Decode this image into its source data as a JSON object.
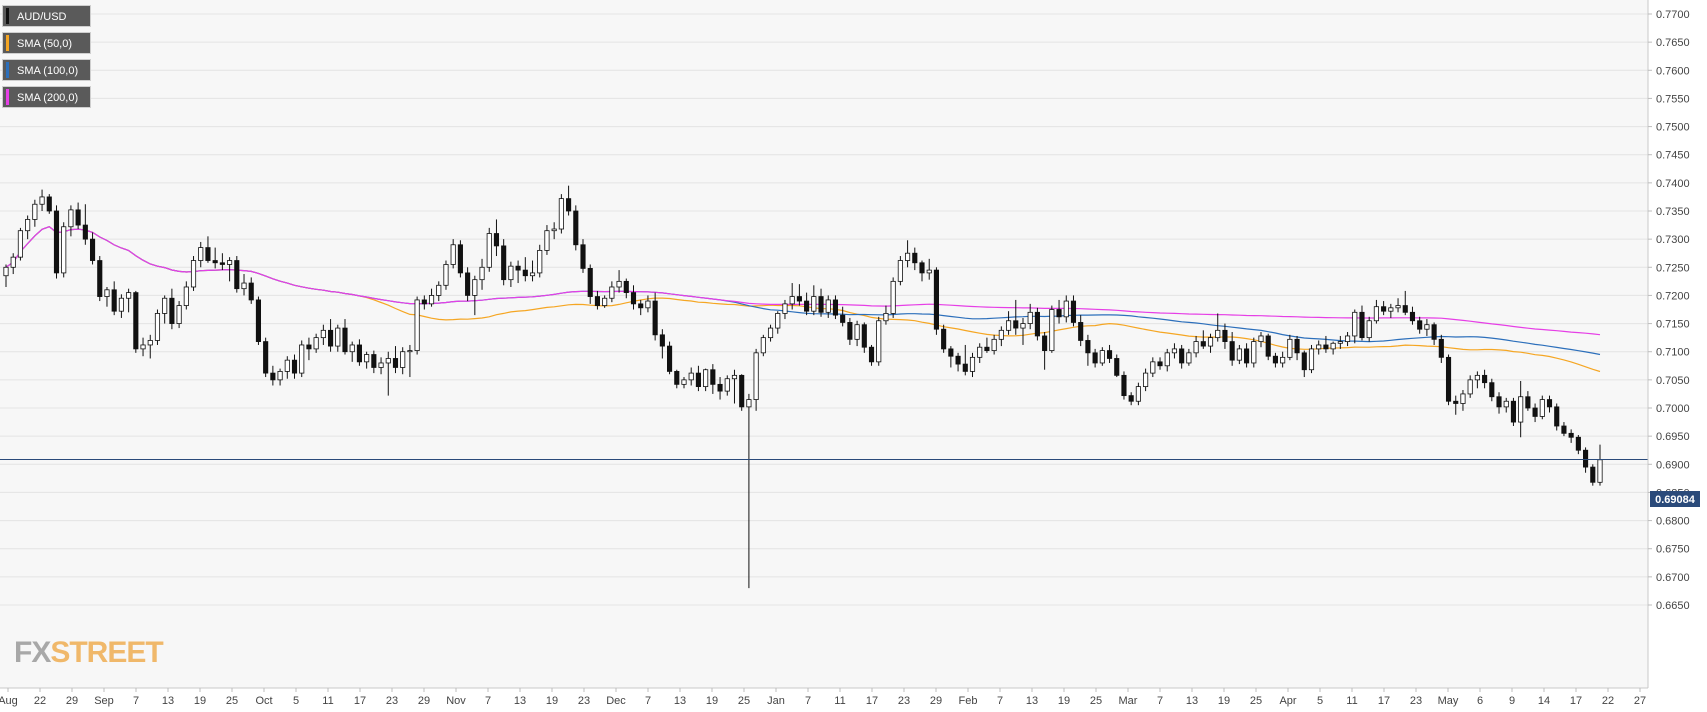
{
  "chart_data": {
    "type": "candlestick",
    "symbol": "AUD/USD",
    "y_axis": {
      "range": [
        0.6622,
        0.7715
      ],
      "ticks": [
        "0.7700",
        "0.7650",
        "0.7600",
        "0.7550",
        "0.7500",
        "0.7450",
        "0.7400",
        "0.7350",
        "0.7300",
        "0.7250",
        "0.7200",
        "0.7150",
        "0.7100",
        "0.7050",
        "0.7000",
        "0.6950",
        "0.6900",
        "0.6850",
        "0.6800",
        "0.6750",
        "0.6700",
        "0.6650"
      ]
    },
    "x_axis": {
      "ticks": [
        "Aug",
        "22",
        "29",
        "Sep",
        "7",
        "13",
        "19",
        "25",
        "Oct",
        "5",
        "11",
        "17",
        "23",
        "29",
        "Nov",
        "7",
        "13",
        "19",
        "23",
        "Dec",
        "7",
        "13",
        "19",
        "25",
        "Jan",
        "7",
        "11",
        "17",
        "23",
        "29",
        "Feb",
        "7",
        "13",
        "19",
        "25",
        "Mar",
        "7",
        "13",
        "19",
        "25",
        "Apr",
        "5",
        "11",
        "17",
        "23",
        "May",
        "6",
        "9",
        "14",
        "17",
        "22",
        "27"
      ]
    },
    "last_price": "0.69084",
    "candles": [
      [
        0.7235,
        0.7255,
        0.7215,
        0.725
      ],
      [
        0.725,
        0.7275,
        0.7238,
        0.7268
      ],
      [
        0.7268,
        0.732,
        0.7262,
        0.7315
      ],
      [
        0.7315,
        0.7342,
        0.73,
        0.7335
      ],
      [
        0.7335,
        0.737,
        0.7322,
        0.7362
      ],
      [
        0.7362,
        0.7388,
        0.735,
        0.7375
      ],
      [
        0.7375,
        0.738,
        0.7345,
        0.735
      ],
      [
        0.735,
        0.736,
        0.723,
        0.724
      ],
      [
        0.724,
        0.733,
        0.7232,
        0.7322
      ],
      [
        0.7322,
        0.736,
        0.7305,
        0.7352
      ],
      [
        0.7352,
        0.7365,
        0.7318,
        0.7325
      ],
      [
        0.7325,
        0.7362,
        0.729,
        0.73
      ],
      [
        0.73,
        0.7312,
        0.7255,
        0.7262
      ],
      [
        0.7262,
        0.727,
        0.719,
        0.7198
      ],
      [
        0.7198,
        0.7215,
        0.718,
        0.721
      ],
      [
        0.721,
        0.7225,
        0.7165,
        0.7172
      ],
      [
        0.7172,
        0.7202,
        0.716,
        0.7195
      ],
      [
        0.7195,
        0.7212,
        0.717,
        0.7205
      ],
      [
        0.7205,
        0.7208,
        0.7098,
        0.7105
      ],
      [
        0.7105,
        0.7125,
        0.7092,
        0.7112
      ],
      [
        0.7112,
        0.713,
        0.7088,
        0.712
      ],
      [
        0.712,
        0.7175,
        0.7112,
        0.7168
      ],
      [
        0.7168,
        0.72,
        0.715,
        0.7195
      ],
      [
        0.7195,
        0.7212,
        0.714,
        0.715
      ],
      [
        0.715,
        0.719,
        0.7142,
        0.7182
      ],
      [
        0.7182,
        0.7225,
        0.7175,
        0.7215
      ],
      [
        0.7215,
        0.727,
        0.7208,
        0.7262
      ],
      [
        0.7262,
        0.7295,
        0.725,
        0.7285
      ],
      [
        0.7285,
        0.7305,
        0.7258,
        0.7262
      ],
      [
        0.7262,
        0.7285,
        0.7248,
        0.7258
      ],
      [
        0.7258,
        0.7275,
        0.7245,
        0.7255
      ],
      [
        0.7255,
        0.7268,
        0.7225,
        0.7262
      ],
      [
        0.7262,
        0.727,
        0.7205,
        0.7212
      ],
      [
        0.7212,
        0.7238,
        0.72,
        0.7222
      ],
      [
        0.7222,
        0.7232,
        0.7185,
        0.7192
      ],
      [
        0.7192,
        0.7198,
        0.7112,
        0.7118
      ],
      [
        0.7118,
        0.7125,
        0.7055,
        0.7062
      ],
      [
        0.7062,
        0.7075,
        0.704,
        0.705
      ],
      [
        0.705,
        0.707,
        0.704,
        0.7065
      ],
      [
        0.7065,
        0.7092,
        0.7052,
        0.7085
      ],
      [
        0.7085,
        0.7095,
        0.7052,
        0.7062
      ],
      [
        0.7062,
        0.712,
        0.7055,
        0.7112
      ],
      [
        0.7112,
        0.7125,
        0.7085,
        0.7105
      ],
      [
        0.7105,
        0.7132,
        0.7098,
        0.7125
      ],
      [
        0.7125,
        0.7148,
        0.7112,
        0.7138
      ],
      [
        0.7138,
        0.7158,
        0.71,
        0.711
      ],
      [
        0.711,
        0.7148,
        0.71,
        0.7142
      ],
      [
        0.7142,
        0.7158,
        0.7095,
        0.71
      ],
      [
        0.71,
        0.7118,
        0.7082,
        0.7112
      ],
      [
        0.7112,
        0.7122,
        0.7075,
        0.7082
      ],
      [
        0.7082,
        0.71,
        0.707,
        0.7095
      ],
      [
        0.7095,
        0.7102,
        0.7062,
        0.7072
      ],
      [
        0.7072,
        0.709,
        0.706,
        0.708
      ],
      [
        0.708,
        0.71,
        0.7022,
        0.7088
      ],
      [
        0.7088,
        0.711,
        0.7062,
        0.7072
      ],
      [
        0.7072,
        0.7108,
        0.706,
        0.71
      ],
      [
        0.71,
        0.7112,
        0.7055,
        0.7102
      ],
      [
        0.7102,
        0.7198,
        0.7095,
        0.7192
      ],
      [
        0.7192,
        0.72,
        0.7175,
        0.7185
      ],
      [
        0.7185,
        0.7212,
        0.718,
        0.72
      ],
      [
        0.72,
        0.7225,
        0.719,
        0.7218
      ],
      [
        0.7218,
        0.7262,
        0.721,
        0.7255
      ],
      [
        0.7255,
        0.73,
        0.7248,
        0.729
      ],
      [
        0.729,
        0.7298,
        0.7232,
        0.724
      ],
      [
        0.724,
        0.725,
        0.719,
        0.72
      ],
      [
        0.72,
        0.7235,
        0.7165,
        0.7228
      ],
      [
        0.7228,
        0.7265,
        0.721,
        0.725
      ],
      [
        0.725,
        0.732,
        0.7242,
        0.731
      ],
      [
        0.731,
        0.7335,
        0.727,
        0.7288
      ],
      [
        0.7288,
        0.73,
        0.7218,
        0.7228
      ],
      [
        0.7228,
        0.726,
        0.7215,
        0.7252
      ],
      [
        0.7252,
        0.7262,
        0.7222,
        0.7245
      ],
      [
        0.7245,
        0.7268,
        0.7225,
        0.7235
      ],
      [
        0.7235,
        0.7262,
        0.7225,
        0.724
      ],
      [
        0.724,
        0.729,
        0.7232,
        0.728
      ],
      [
        0.728,
        0.7325,
        0.7272,
        0.7315
      ],
      [
        0.7315,
        0.733,
        0.73,
        0.7318
      ],
      [
        0.7318,
        0.738,
        0.731,
        0.7372
      ],
      [
        0.7372,
        0.7395,
        0.7342,
        0.735
      ],
      [
        0.735,
        0.736,
        0.728,
        0.729
      ],
      [
        0.729,
        0.73,
        0.724,
        0.7248
      ],
      [
        0.7248,
        0.7255,
        0.7185,
        0.7198
      ],
      [
        0.7198,
        0.7208,
        0.7175,
        0.7182
      ],
      [
        0.7182,
        0.72,
        0.7178,
        0.7195
      ],
      [
        0.7195,
        0.7225,
        0.7188,
        0.7215
      ],
      [
        0.7215,
        0.7245,
        0.7205,
        0.7225
      ],
      [
        0.7225,
        0.723,
        0.7195,
        0.7205
      ],
      [
        0.7205,
        0.7218,
        0.7175,
        0.7185
      ],
      [
        0.7185,
        0.7192,
        0.7165,
        0.7178
      ],
      [
        0.7178,
        0.72,
        0.717,
        0.719
      ],
      [
        0.719,
        0.7205,
        0.712,
        0.713
      ],
      [
        0.713,
        0.714,
        0.7088,
        0.711
      ],
      [
        0.711,
        0.7118,
        0.706,
        0.7065
      ],
      [
        0.7065,
        0.7068,
        0.7035,
        0.7042
      ],
      [
        0.7042,
        0.7055,
        0.7035,
        0.705
      ],
      [
        0.705,
        0.7072,
        0.704,
        0.7062
      ],
      [
        0.7062,
        0.7075,
        0.703,
        0.7038
      ],
      [
        0.7038,
        0.707,
        0.703,
        0.7068
      ],
      [
        0.7068,
        0.7078,
        0.7025,
        0.7042
      ],
      [
        0.7042,
        0.7055,
        0.7015,
        0.703
      ],
      [
        0.703,
        0.7058,
        0.7022,
        0.7052
      ],
      [
        0.7052,
        0.7068,
        0.7008,
        0.7058
      ],
      [
        0.7058,
        0.706,
        0.6995,
        0.7002
      ],
      [
        0.7002,
        0.7025,
        0.668,
        0.7015
      ],
      [
        0.7015,
        0.7105,
        0.6995,
        0.7098
      ],
      [
        0.7098,
        0.713,
        0.7092,
        0.7125
      ],
      [
        0.7125,
        0.7148,
        0.7118,
        0.7142
      ],
      [
        0.7142,
        0.7172,
        0.7132,
        0.7168
      ],
      [
        0.7168,
        0.7192,
        0.7158,
        0.7185
      ],
      [
        0.7185,
        0.7222,
        0.7175,
        0.7198
      ],
      [
        0.7198,
        0.722,
        0.7182,
        0.719
      ],
      [
        0.719,
        0.7205,
        0.7165,
        0.7172
      ],
      [
        0.7172,
        0.7218,
        0.7165,
        0.7198
      ],
      [
        0.7198,
        0.7212,
        0.7162,
        0.717
      ],
      [
        0.717,
        0.72,
        0.716,
        0.7192
      ],
      [
        0.7192,
        0.72,
        0.7158,
        0.7165
      ],
      [
        0.7165,
        0.718,
        0.7145,
        0.7152
      ],
      [
        0.7152,
        0.716,
        0.7112,
        0.7122
      ],
      [
        0.7122,
        0.7155,
        0.711,
        0.7148
      ],
      [
        0.7148,
        0.7152,
        0.7098,
        0.7108
      ],
      [
        0.7108,
        0.7112,
        0.7075,
        0.7082
      ],
      [
        0.7082,
        0.7162,
        0.7075,
        0.7155
      ],
      [
        0.7155,
        0.7182,
        0.7148,
        0.7168
      ],
      [
        0.7168,
        0.7232,
        0.716,
        0.7225
      ],
      [
        0.7225,
        0.727,
        0.7218,
        0.7262
      ],
      [
        0.7262,
        0.7298,
        0.725,
        0.7275
      ],
      [
        0.7275,
        0.7285,
        0.7245,
        0.7258
      ],
      [
        0.7258,
        0.7262,
        0.7225,
        0.724
      ],
      [
        0.724,
        0.7265,
        0.7228,
        0.7245
      ],
      [
        0.7245,
        0.725,
        0.713,
        0.714
      ],
      [
        0.714,
        0.7148,
        0.7098,
        0.7105
      ],
      [
        0.7105,
        0.711,
        0.7072,
        0.7092
      ],
      [
        0.7092,
        0.7098,
        0.7065,
        0.7078
      ],
      [
        0.7078,
        0.7112,
        0.7058,
        0.7065
      ],
      [
        0.7065,
        0.7098,
        0.7055,
        0.709
      ],
      [
        0.709,
        0.7115,
        0.708,
        0.7108
      ],
      [
        0.7108,
        0.7125,
        0.7098,
        0.7102
      ],
      [
        0.7102,
        0.713,
        0.7095,
        0.7122
      ],
      [
        0.7122,
        0.7145,
        0.711,
        0.7138
      ],
      [
        0.7138,
        0.7172,
        0.713,
        0.7155
      ],
      [
        0.7155,
        0.7192,
        0.713,
        0.7142
      ],
      [
        0.7142,
        0.716,
        0.7112,
        0.715
      ],
      [
        0.715,
        0.7185,
        0.714,
        0.717
      ],
      [
        0.717,
        0.7178,
        0.712,
        0.7128
      ],
      [
        0.7128,
        0.7135,
        0.7068,
        0.7102
      ],
      [
        0.7102,
        0.7182,
        0.7098,
        0.7175
      ],
      [
        0.7175,
        0.7192,
        0.715,
        0.7162
      ],
      [
        0.7162,
        0.72,
        0.7152,
        0.719
      ],
      [
        0.719,
        0.72,
        0.7145,
        0.7152
      ],
      [
        0.7152,
        0.7165,
        0.711,
        0.712
      ],
      [
        0.712,
        0.713,
        0.7075,
        0.7098
      ],
      [
        0.7098,
        0.7105,
        0.7072,
        0.708
      ],
      [
        0.708,
        0.7108,
        0.7075,
        0.7102
      ],
      [
        0.7102,
        0.7112,
        0.708,
        0.7088
      ],
      [
        0.7088,
        0.7095,
        0.7055,
        0.7058
      ],
      [
        0.7058,
        0.7065,
        0.7015,
        0.7022
      ],
      [
        0.7022,
        0.7028,
        0.7005,
        0.7012
      ],
      [
        0.7012,
        0.7045,
        0.7005,
        0.7038
      ],
      [
        0.7038,
        0.707,
        0.703,
        0.7062
      ],
      [
        0.7062,
        0.709,
        0.7055,
        0.7082
      ],
      [
        0.7082,
        0.709,
        0.7068,
        0.7075
      ],
      [
        0.7075,
        0.7105,
        0.7065,
        0.7098
      ],
      [
        0.7098,
        0.7115,
        0.7088,
        0.7105
      ],
      [
        0.7105,
        0.7112,
        0.707,
        0.708
      ],
      [
        0.708,
        0.7105,
        0.7075,
        0.7098
      ],
      [
        0.7098,
        0.7128,
        0.709,
        0.7118
      ],
      [
        0.7118,
        0.7138,
        0.7105,
        0.711
      ],
      [
        0.711,
        0.7132,
        0.7098,
        0.7125
      ],
      [
        0.7125,
        0.7168,
        0.7118,
        0.7138
      ],
      [
        0.7138,
        0.715,
        0.7105,
        0.7118
      ],
      [
        0.7118,
        0.7135,
        0.7075,
        0.7085
      ],
      [
        0.7085,
        0.7112,
        0.7078,
        0.7105
      ],
      [
        0.7105,
        0.7115,
        0.7072,
        0.708
      ],
      [
        0.708,
        0.7125,
        0.7072,
        0.7118
      ],
      [
        0.7118,
        0.7135,
        0.7108,
        0.7128
      ],
      [
        0.7128,
        0.7132,
        0.7085,
        0.7092
      ],
      [
        0.7092,
        0.7098,
        0.7072,
        0.708
      ],
      [
        0.708,
        0.71,
        0.7072,
        0.709
      ],
      [
        0.709,
        0.713,
        0.7085,
        0.7122
      ],
      [
        0.7122,
        0.7128,
        0.7085,
        0.7098
      ],
      [
        0.7098,
        0.7102,
        0.7055,
        0.7068
      ],
      [
        0.7068,
        0.7112,
        0.7062,
        0.7105
      ],
      [
        0.7105,
        0.712,
        0.7095,
        0.7112
      ],
      [
        0.7112,
        0.7128,
        0.7098,
        0.7105
      ],
      [
        0.7105,
        0.7118,
        0.7095,
        0.7115
      ],
      [
        0.7115,
        0.7128,
        0.7105,
        0.7118
      ],
      [
        0.7118,
        0.7135,
        0.711,
        0.7128
      ],
      [
        0.7128,
        0.7175,
        0.7115,
        0.717
      ],
      [
        0.717,
        0.7182,
        0.712,
        0.7125
      ],
      [
        0.7125,
        0.7162,
        0.7118,
        0.7155
      ],
      [
        0.7155,
        0.7192,
        0.715,
        0.718
      ],
      [
        0.718,
        0.719,
        0.7165,
        0.7172
      ],
      [
        0.7172,
        0.7185,
        0.716,
        0.7178
      ],
      [
        0.7178,
        0.7195,
        0.717,
        0.7182
      ],
      [
        0.7182,
        0.7208,
        0.7165,
        0.717
      ],
      [
        0.717,
        0.718,
        0.7148,
        0.7155
      ],
      [
        0.7155,
        0.7162,
        0.7132,
        0.714
      ],
      [
        0.714,
        0.7158,
        0.7128,
        0.7148
      ],
      [
        0.7148,
        0.7152,
        0.7112,
        0.7122
      ],
      [
        0.7122,
        0.713,
        0.708,
        0.709
      ],
      [
        0.709,
        0.7095,
        0.7005,
        0.7012
      ],
      [
        0.7012,
        0.7022,
        0.6988,
        0.7008
      ],
      [
        0.7008,
        0.7032,
        0.6995,
        0.7025
      ],
      [
        0.7025,
        0.7058,
        0.7018,
        0.705
      ],
      [
        0.705,
        0.7065,
        0.7035,
        0.7058
      ],
      [
        0.7058,
        0.7068,
        0.7035,
        0.7045
      ],
      [
        0.7045,
        0.7052,
        0.7012,
        0.702
      ],
      [
        0.702,
        0.7028,
        0.699,
        0.7002
      ],
      [
        0.7002,
        0.7018,
        0.6992,
        0.7012
      ],
      [
        0.7012,
        0.7018,
        0.6968,
        0.6975
      ],
      [
        0.6975,
        0.7048,
        0.6948,
        0.702
      ],
      [
        0.702,
        0.703,
        0.6995,
        0.7
      ],
      [
        0.7,
        0.7008,
        0.6975,
        0.6985
      ],
      [
        0.6985,
        0.7022,
        0.698,
        0.7015
      ],
      [
        0.7015,
        0.7022,
        0.6992,
        0.7002
      ],
      [
        0.7002,
        0.7008,
        0.696,
        0.6968
      ],
      [
        0.6968,
        0.6975,
        0.695,
        0.6955
      ],
      [
        0.6955,
        0.6962,
        0.6938,
        0.6948
      ],
      [
        0.6948,
        0.6952,
        0.6918,
        0.6925
      ],
      [
        0.6925,
        0.693,
        0.6885,
        0.6895
      ],
      [
        0.6895,
        0.69,
        0.6862,
        0.6868
      ],
      [
        0.6868,
        0.6935,
        0.6862,
        0.6908
      ]
    ]
  },
  "legend": [
    {
      "label": "AUD/USD",
      "color": "#111111"
    },
    {
      "label": "SMA (50,0)",
      "color": "#f5a623"
    },
    {
      "label": "SMA (100,0)",
      "color": "#2c6fbb"
    },
    {
      "label": "SMA (200,0)",
      "color": "#e63fe6"
    }
  ],
  "logo": {
    "part1": "FX",
    "part2": "STREET"
  }
}
